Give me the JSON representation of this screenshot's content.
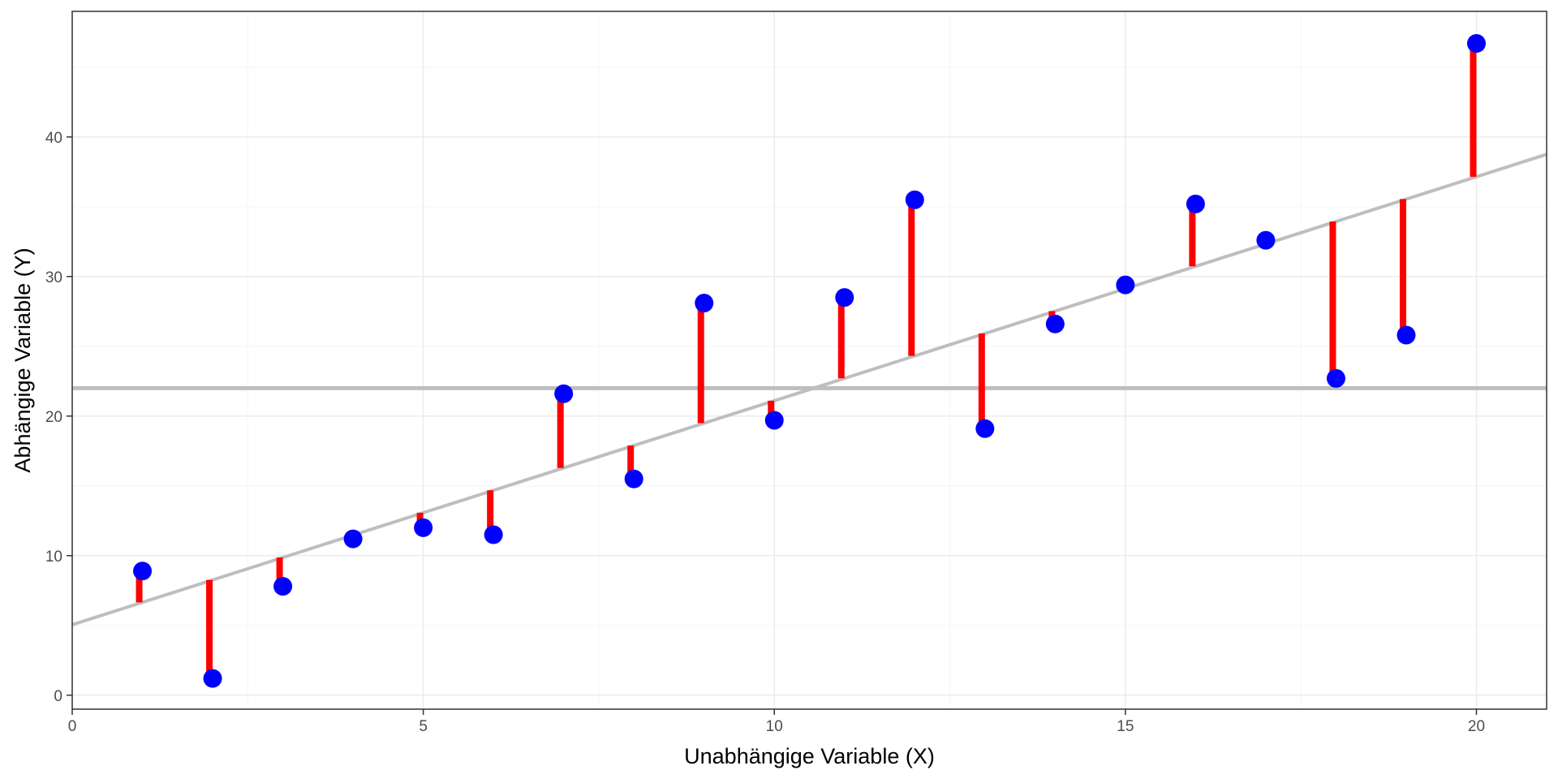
{
  "chart_data": {
    "type": "scatter",
    "title": "",
    "xlabel": "Unabhängige Variable (X)",
    "ylabel": "Abhängige Variable (Y)",
    "xlim": [
      0,
      21
    ],
    "ylim": [
      -1,
      49
    ],
    "x_ticks": [
      0,
      5,
      10,
      15,
      20
    ],
    "y_ticks": [
      0,
      10,
      20,
      30,
      40
    ],
    "x_tick_labels": [
      "0",
      "5",
      "10",
      "15",
      "20"
    ],
    "y_tick_labels": [
      "0",
      "10",
      "20",
      "30",
      "40"
    ],
    "grid": true,
    "legend": "none",
    "points": {
      "x": [
        1,
        2,
        3,
        4,
        5,
        6,
        7,
        8,
        9,
        10,
        11,
        12,
        13,
        14,
        15,
        16,
        17,
        18,
        19,
        20
      ],
      "y": [
        8.9,
        1.2,
        7.8,
        11.2,
        12.0,
        11.5,
        21.6,
        15.5,
        28.1,
        19.7,
        28.5,
        35.5,
        19.1,
        26.6,
        29.4,
        35.2,
        32.6,
        22.7,
        25.8,
        46.7
      ]
    },
    "regression_line": {
      "intercept": 5.05,
      "slope": 1.605
    },
    "mean_line": {
      "y": 22.0
    },
    "residuals": "vertical segments from each point to the regression line",
    "colors": {
      "points": "#0000FF",
      "residuals": "#FF0000",
      "regression_line": "#BEBEBE",
      "mean_line": "#BEBEBE",
      "grid_major": "#EBEBEB",
      "grid_minor": "#F5F5F5",
      "panel_border": "#333333"
    }
  }
}
